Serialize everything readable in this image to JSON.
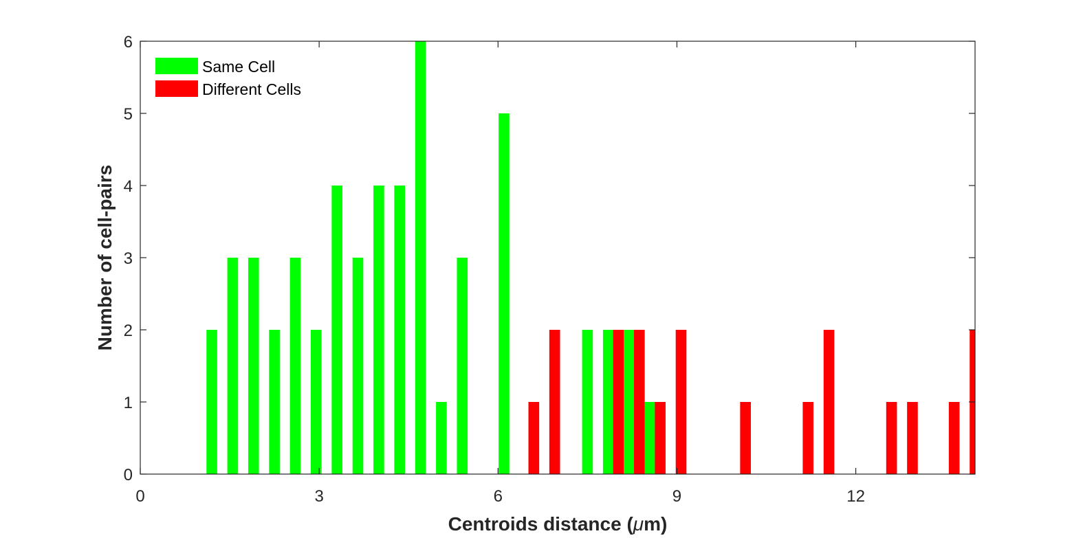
{
  "chart_data": {
    "type": "bar",
    "xlabel_parts": [
      "Centroids distance (",
      "μ",
      "m)"
    ],
    "ylabel": "Number of cell-pairs",
    "xlim": [
      0,
      14
    ],
    "ylim": [
      0,
      6
    ],
    "xticks": [
      0,
      3,
      6,
      9,
      12
    ],
    "yticks": [
      0,
      1,
      2,
      3,
      4,
      5,
      6
    ],
    "bar_width": 0.18,
    "legend_position": "top-left",
    "series": [
      {
        "name": "Same Cell",
        "color": "#00ff00",
        "x": [
          1.2,
          1.55,
          1.9,
          2.25,
          2.6,
          2.95,
          3.3,
          3.65,
          4.0,
          4.35,
          4.7,
          5.05,
          5.4,
          6.1,
          7.5,
          7.85,
          8.2,
          8.55
        ],
        "values": [
          2,
          3,
          3,
          2,
          3,
          2,
          4,
          3,
          4,
          4,
          6,
          1,
          3,
          5,
          2,
          2,
          2,
          1
        ]
      },
      {
        "name": "Different Cells",
        "color": "#ff0000",
        "x": [
          6.6,
          6.95,
          8.02,
          8.37,
          8.72,
          9.07,
          10.15,
          11.2,
          11.55,
          12.6,
          12.95,
          13.65,
          14.0
        ],
        "values": [
          1,
          2,
          2,
          2,
          1,
          2,
          1,
          1,
          2,
          1,
          1,
          1,
          2
        ]
      }
    ]
  }
}
